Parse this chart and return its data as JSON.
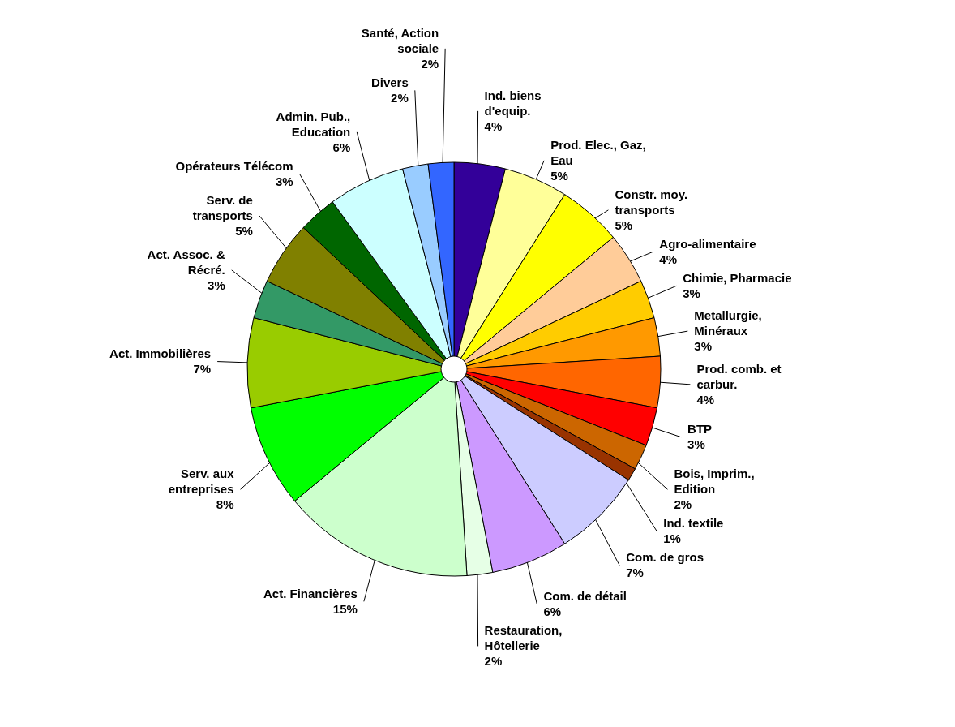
{
  "chart_data": {
    "type": "pie",
    "categories": [
      "Ind. biens d'equip.",
      "Prod. Elec., Gaz, Eau",
      "Constr. moy. transports",
      "Agro-alimentaire",
      "Chimie, Pharmacie",
      "Metallurgie, Minéraux",
      "Prod. comb. et carbur.",
      "BTP",
      "Bois, Imprim., Edition",
      "Ind. textile",
      "Com. de gros",
      "Com. de détail",
      "Restauration, Hôtellerie",
      "Act. Financières",
      "Serv. aux entreprises",
      "Act. Immobilières",
      "Act. Assoc. & Récré.",
      "Serv. de transports",
      "Opérateurs Télécom",
      "Admin. Pub., Education",
      "Divers",
      "Santé, Action sociale"
    ],
    "values": [
      4,
      5,
      5,
      4,
      3,
      3,
      4,
      3,
      2,
      1,
      7,
      6,
      2,
      15,
      8,
      7,
      3,
      5,
      3,
      6,
      2,
      2
    ],
    "value_labels": [
      "4%",
      "5%",
      "5%",
      "4%",
      "3%",
      "3%",
      "4%",
      "3%",
      "2%",
      "1%",
      "7%",
      "6%",
      "2%",
      "15%",
      "8%",
      "7%",
      "3%",
      "5%",
      "3%",
      "6%",
      "2%",
      "2%"
    ],
    "colors": [
      "#330099",
      "#ffff99",
      "#ffff00",
      "#ffcc99",
      "#ffcc00",
      "#ff9900",
      "#ff6600",
      "#ff0000",
      "#cc6600",
      "#993300",
      "#ccccff",
      "#cc99ff",
      "#e6ffe6",
      "#ccffcc",
      "#00ff00",
      "#99cc00",
      "#339966",
      "#808000",
      "#006600",
      "#ccffff",
      "#99ccff",
      "#3366ff"
    ]
  }
}
